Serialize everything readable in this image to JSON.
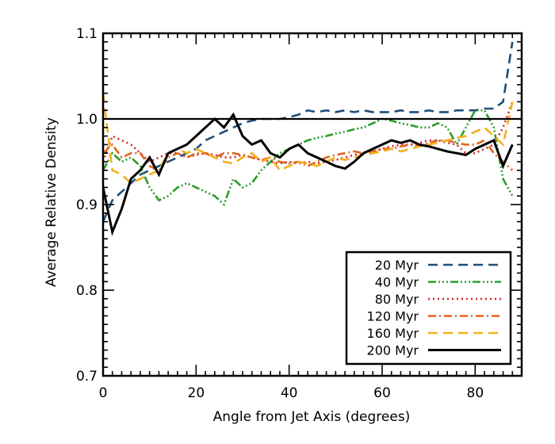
{
  "chart_data": {
    "type": "line",
    "title": "",
    "xlabel": "Angle from Jet Axis (degrees)",
    "ylabel": "Average Relative Density",
    "xlim": [
      0,
      90
    ],
    "ylim": [
      0.7,
      1.1
    ],
    "xticks": [
      0,
      20,
      40,
      60,
      80
    ],
    "xtick_labels": [
      "0",
      "20",
      "40",
      "60",
      "80"
    ],
    "yticks": [
      0.7,
      0.8,
      0.9,
      1.0,
      1.1
    ],
    "ytick_labels": [
      "0.7",
      "0.8",
      "0.9",
      "1.0",
      "1.1"
    ],
    "grid": false,
    "legend_position": "bottom-right",
    "reference_line": 1.0,
    "x": [
      0,
      2,
      4,
      6,
      8,
      10,
      12,
      14,
      16,
      18,
      20,
      22,
      24,
      26,
      28,
      30,
      32,
      34,
      36,
      38,
      40,
      42,
      44,
      46,
      48,
      50,
      52,
      54,
      56,
      58,
      60,
      62,
      64,
      66,
      68,
      70,
      72,
      74,
      76,
      78,
      80,
      82,
      84,
      86,
      88
    ],
    "series": [
      {
        "name": "20 Myr",
        "color": "#1f4e79",
        "dash": "dash",
        "values": [
          0.88,
          0.905,
          0.915,
          0.925,
          0.935,
          0.94,
          0.945,
          0.95,
          0.955,
          0.96,
          0.965,
          0.975,
          0.98,
          0.985,
          0.99,
          0.995,
          0.998,
          1.0,
          1.0,
          1.0,
          1.002,
          1.005,
          1.01,
          1.008,
          1.01,
          1.008,
          1.01,
          1.008,
          1.01,
          1.008,
          1.008,
          1.008,
          1.01,
          1.008,
          1.008,
          1.01,
          1.008,
          1.008,
          1.01,
          1.01,
          1.01,
          1.012,
          1.012,
          1.02,
          1.09
        ]
      },
      {
        "name": "40 Myr",
        "color": "#2a9d2a",
        "dash": "dashdotdotdot",
        "values": [
          0.94,
          0.96,
          0.95,
          0.955,
          0.945,
          0.92,
          0.905,
          0.91,
          0.92,
          0.925,
          0.92,
          0.915,
          0.91,
          0.9,
          0.93,
          0.92,
          0.925,
          0.94,
          0.95,
          0.96,
          0.965,
          0.97,
          0.975,
          0.978,
          0.98,
          0.983,
          0.985,
          0.988,
          0.99,
          0.995,
          1.0,
          0.998,
          0.995,
          0.993,
          0.99,
          0.99,
          0.995,
          0.99,
          0.97,
          0.99,
          1.01,
          1.01,
          0.99,
          0.93,
          0.91
        ]
      },
      {
        "name": "80 Myr",
        "color": "#d62728",
        "dash": "dot",
        "values": [
          0.95,
          0.98,
          0.975,
          0.97,
          0.96,
          0.95,
          0.955,
          0.96,
          0.96,
          0.955,
          0.958,
          0.96,
          0.958,
          0.955,
          0.955,
          0.958,
          0.955,
          0.952,
          0.95,
          0.948,
          0.95,
          0.948,
          0.95,
          0.948,
          0.95,
          0.952,
          0.955,
          0.958,
          0.96,
          0.962,
          0.965,
          0.968,
          0.97,
          0.97,
          0.972,
          0.975,
          0.975,
          0.972,
          0.97,
          0.96,
          0.96,
          0.965,
          0.97,
          0.99,
          1.02
        ]
      },
      {
        "name": "120 Myr",
        "color": "#e0641a",
        "dash": "dashdot",
        "values": [
          0.96,
          0.97,
          0.955,
          0.96,
          0.96,
          0.945,
          0.94,
          0.955,
          0.96,
          0.955,
          0.96,
          0.96,
          0.955,
          0.96,
          0.96,
          0.958,
          0.955,
          0.952,
          0.955,
          0.95,
          0.948,
          0.95,
          0.945,
          0.95,
          0.955,
          0.958,
          0.96,
          0.962,
          0.96,
          0.962,
          0.965,
          0.965,
          0.968,
          0.97,
          0.968,
          0.972,
          0.975,
          0.975,
          0.972,
          0.97,
          0.97,
          0.975,
          0.96,
          0.95,
          0.94
        ]
      },
      {
        "name": "160 Myr",
        "color": "#f2b11a",
        "dash": "dash",
        "values": [
          1.03,
          0.94,
          0.935,
          0.925,
          0.93,
          0.935,
          0.94,
          0.96,
          0.965,
          0.96,
          0.965,
          0.96,
          0.955,
          0.95,
          0.948,
          0.955,
          0.96,
          0.95,
          0.955,
          0.94,
          0.945,
          0.95,
          0.948,
          0.945,
          0.95,
          0.955,
          0.952,
          0.955,
          0.958,
          0.96,
          0.962,
          0.965,
          0.962,
          0.965,
          0.968,
          0.97,
          0.972,
          0.975,
          0.978,
          0.98,
          0.985,
          0.99,
          0.98,
          0.97,
          1.02
        ]
      },
      {
        "name": "200 Myr",
        "color": "#000000",
        "dash": "solid",
        "values": [
          0.92,
          0.868,
          0.895,
          0.93,
          0.94,
          0.955,
          0.935,
          0.96,
          0.965,
          0.97,
          0.98,
          0.99,
          1.0,
          0.99,
          1.005,
          0.98,
          0.97,
          0.975,
          0.96,
          0.955,
          0.965,
          0.97,
          0.96,
          0.955,
          0.95,
          0.945,
          0.942,
          0.95,
          0.96,
          0.965,
          0.97,
          0.975,
          0.972,
          0.975,
          0.97,
          0.968,
          0.965,
          0.962,
          0.96,
          0.958,
          0.965,
          0.97,
          0.975,
          0.945,
          0.97
        ]
      }
    ]
  }
}
